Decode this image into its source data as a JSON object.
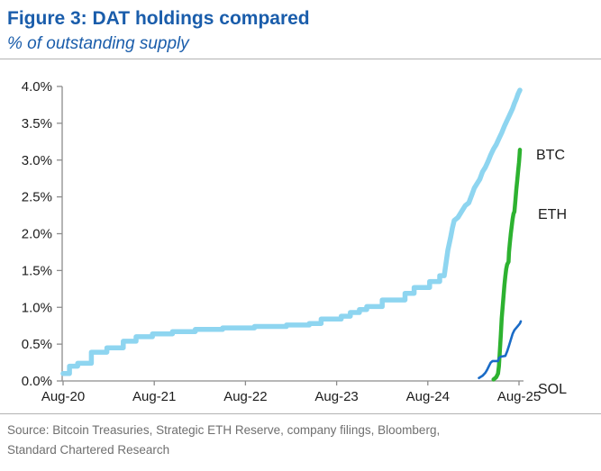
{
  "header": {
    "title": "Figure 3: DAT holdings compared",
    "subtitle": "% of outstanding supply"
  },
  "footer": {
    "source_line1": "Source: Bitcoin Treasuries, Strategic ETH Reserve, company filings, Bloomberg,",
    "source_line2": "Standard Chartered Research"
  },
  "colors": {
    "title_blue": "#1a5dab",
    "axis": "#8c8c8c",
    "tick_text": "#1c1c1c",
    "separator": "#b3b3b3",
    "source_text": "#6f6f6f",
    "btc": "#8ed5f0",
    "eth": "#2db230",
    "sol": "#1a6bc6"
  },
  "chart_data": {
    "type": "line",
    "title": "Figure 3: DAT holdings compared",
    "subtitle": "% of outstanding supply",
    "xlabel": "",
    "ylabel": "% of outstanding supply",
    "ylim": [
      0,
      4
    ],
    "grid": false,
    "legend_position": "right-of-line-ends",
    "x_unit": "years since Aug-2020",
    "x_ticks": [
      "Aug-20",
      "Aug-21",
      "Aug-22",
      "Aug-23",
      "Aug-24",
      "Aug-25"
    ],
    "y_ticks": [
      {
        "label": "4.0%",
        "value": 4.0
      },
      {
        "label": "3.5%",
        "value": 3.5
      },
      {
        "label": "3.0%",
        "value": 3.0
      },
      {
        "label": "2.5%",
        "value": 2.5
      },
      {
        "label": "2.0%",
        "value": 2.0
      },
      {
        "label": "1.5%",
        "value": 1.5
      },
      {
        "label": "1.0%",
        "value": 1.0
      },
      {
        "label": "0.5%",
        "value": 0.5
      },
      {
        "label": "0.0%",
        "value": 0.0
      }
    ],
    "series": [
      {
        "name": "BTC",
        "color": "#8ed5f0",
        "stroke_width": 5.5,
        "points": [
          [
            0.0,
            0.1
          ],
          [
            0.07,
            0.1
          ],
          [
            0.07,
            0.2
          ],
          [
            0.16,
            0.2
          ],
          [
            0.16,
            0.24
          ],
          [
            0.31,
            0.24
          ],
          [
            0.31,
            0.39
          ],
          [
            0.48,
            0.39
          ],
          [
            0.48,
            0.45
          ],
          [
            0.66,
            0.45
          ],
          [
            0.66,
            0.54
          ],
          [
            0.8,
            0.54
          ],
          [
            0.8,
            0.6
          ],
          [
            0.98,
            0.6
          ],
          [
            0.98,
            0.64
          ],
          [
            1.2,
            0.64
          ],
          [
            1.2,
            0.67
          ],
          [
            1.45,
            0.67
          ],
          [
            1.45,
            0.7
          ],
          [
            1.75,
            0.7
          ],
          [
            1.75,
            0.72
          ],
          [
            2.1,
            0.72
          ],
          [
            2.1,
            0.74
          ],
          [
            2.45,
            0.74
          ],
          [
            2.45,
            0.76
          ],
          [
            2.7,
            0.76
          ],
          [
            2.7,
            0.78
          ],
          [
            2.83,
            0.78
          ],
          [
            2.83,
            0.84
          ],
          [
            3.05,
            0.84
          ],
          [
            3.05,
            0.88
          ],
          [
            3.15,
            0.88
          ],
          [
            3.15,
            0.93
          ],
          [
            3.25,
            0.93
          ],
          [
            3.25,
            0.97
          ],
          [
            3.33,
            0.97
          ],
          [
            3.33,
            1.01
          ],
          [
            3.5,
            1.01
          ],
          [
            3.5,
            1.1
          ],
          [
            3.75,
            1.1
          ],
          [
            3.75,
            1.19
          ],
          [
            3.85,
            1.19
          ],
          [
            3.85,
            1.27
          ],
          [
            4.02,
            1.27
          ],
          [
            4.02,
            1.35
          ],
          [
            4.13,
            1.35
          ],
          [
            4.13,
            1.43
          ],
          [
            4.18,
            1.43
          ],
          [
            4.2,
            1.6
          ],
          [
            4.22,
            1.78
          ],
          [
            4.25,
            1.95
          ],
          [
            4.27,
            2.08
          ],
          [
            4.29,
            2.18
          ],
          [
            4.33,
            2.22
          ],
          [
            4.37,
            2.3
          ],
          [
            4.41,
            2.38
          ],
          [
            4.45,
            2.42
          ],
          [
            4.48,
            2.52
          ],
          [
            4.51,
            2.62
          ],
          [
            4.54,
            2.68
          ],
          [
            4.57,
            2.74
          ],
          [
            4.6,
            2.84
          ],
          [
            4.63,
            2.9
          ],
          [
            4.66,
            2.98
          ],
          [
            4.69,
            3.07
          ],
          [
            4.72,
            3.15
          ],
          [
            4.75,
            3.21
          ],
          [
            4.78,
            3.29
          ],
          [
            4.81,
            3.37
          ],
          [
            4.84,
            3.46
          ],
          [
            4.87,
            3.54
          ],
          [
            4.9,
            3.62
          ],
          [
            4.93,
            3.7
          ],
          [
            4.95,
            3.77
          ],
          [
            4.97,
            3.83
          ],
          [
            4.99,
            3.9
          ],
          [
            5.01,
            3.95
          ]
        ]
      },
      {
        "name": "ETH",
        "color": "#2db230",
        "stroke_width": 4.5,
        "points": [
          [
            4.72,
            0.02
          ],
          [
            4.75,
            0.05
          ],
          [
            4.77,
            0.1
          ],
          [
            4.78,
            0.2
          ],
          [
            4.79,
            0.4
          ],
          [
            4.8,
            0.62
          ],
          [
            4.81,
            0.85
          ],
          [
            4.82,
            1.0
          ],
          [
            4.83,
            1.15
          ],
          [
            4.84,
            1.3
          ],
          [
            4.85,
            1.42
          ],
          [
            4.86,
            1.52
          ],
          [
            4.87,
            1.58
          ],
          [
            4.885,
            1.62
          ],
          [
            4.89,
            1.75
          ],
          [
            4.9,
            1.88
          ],
          [
            4.91,
            2.0
          ],
          [
            4.92,
            2.1
          ],
          [
            4.93,
            2.2
          ],
          [
            4.94,
            2.27
          ],
          [
            4.95,
            2.3
          ],
          [
            4.96,
            2.45
          ],
          [
            4.97,
            2.6
          ],
          [
            4.98,
            2.72
          ],
          [
            4.99,
            2.85
          ],
          [
            5.0,
            2.97
          ],
          [
            5.005,
            3.05
          ],
          [
            5.01,
            3.14
          ]
        ]
      },
      {
        "name": "SOL",
        "color": "#1a6bc6",
        "stroke_width": 2.6,
        "points": [
          [
            4.56,
            0.04
          ],
          [
            4.6,
            0.07
          ],
          [
            4.63,
            0.11
          ],
          [
            4.65,
            0.15
          ],
          [
            4.67,
            0.2
          ],
          [
            4.69,
            0.25
          ],
          [
            4.71,
            0.27
          ],
          [
            4.77,
            0.27
          ],
          [
            4.78,
            0.31
          ],
          [
            4.8,
            0.33
          ],
          [
            4.85,
            0.34
          ],
          [
            4.87,
            0.4
          ],
          [
            4.89,
            0.48
          ],
          [
            4.91,
            0.56
          ],
          [
            4.93,
            0.64
          ],
          [
            4.95,
            0.69
          ],
          [
            4.97,
            0.72
          ],
          [
            4.99,
            0.75
          ],
          [
            5.01,
            0.78
          ],
          [
            5.02,
            0.81
          ]
        ]
      }
    ]
  }
}
